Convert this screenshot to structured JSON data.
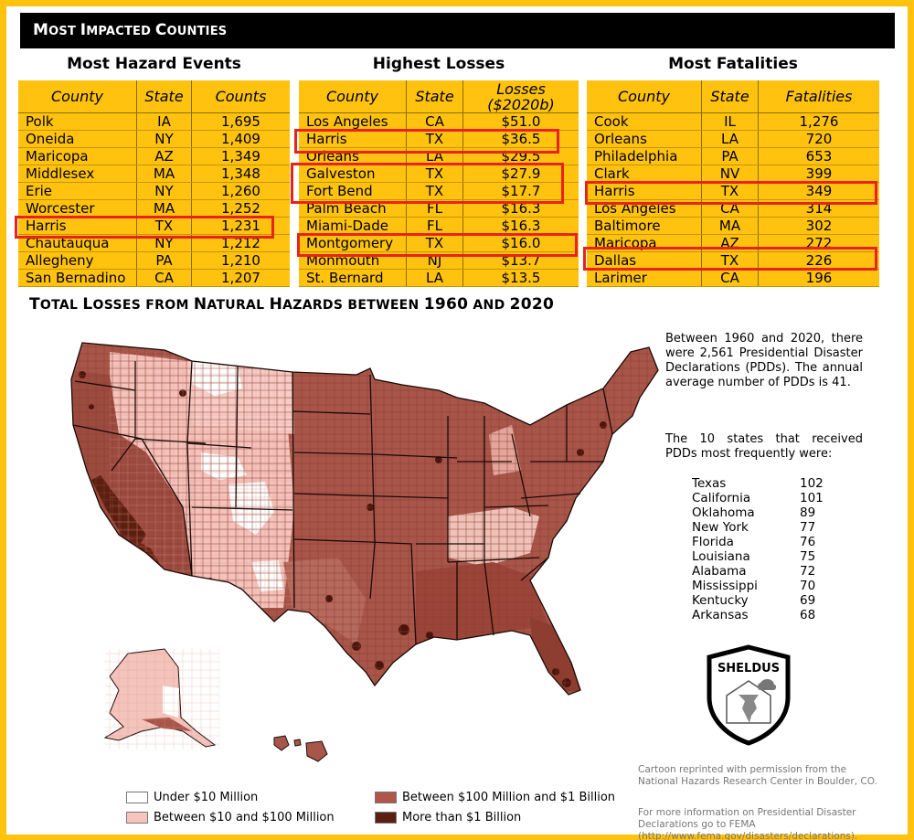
{
  "banner": "Most Impacted Counties",
  "hazard_table": {
    "title": "Most Hazard Events",
    "headers": [
      "County",
      "State",
      "Counts"
    ],
    "rows": [
      [
        "Polk",
        "IA",
        "1,695"
      ],
      [
        "Oneida",
        "NY",
        "1,409"
      ],
      [
        "Maricopa",
        "AZ",
        "1,349"
      ],
      [
        "Middlesex",
        "MA",
        "1,348"
      ],
      [
        "Erie",
        "NY",
        "1,260"
      ],
      [
        "Worcester",
        "MA",
        "1,252"
      ],
      [
        "Harris",
        "TX",
        "1,231"
      ],
      [
        "Chautauqua",
        "NY",
        "1,212"
      ],
      [
        "Allegheny",
        "PA",
        "1,210"
      ],
      [
        "San Bernadino",
        "CA",
        "1,207"
      ]
    ]
  },
  "losses_table": {
    "title": "Highest Losses",
    "headers": [
      "County",
      "State",
      "Losses ($2020b)"
    ],
    "rows": [
      [
        "Los Angeles",
        "CA",
        "$51.0"
      ],
      [
        "Harris",
        "TX",
        "$36.5"
      ],
      [
        "Orleans",
        "LA",
        "$29.5"
      ],
      [
        "Galveston",
        "TX",
        "$27.9"
      ],
      [
        "Fort Bend",
        "TX",
        "$17.7"
      ],
      [
        "Palm Beach",
        "FL",
        "$16.3"
      ],
      [
        "Miami-Dade",
        "FL",
        "$16.3"
      ],
      [
        "Montgomery",
        "TX",
        "$16.0"
      ],
      [
        "Monmouth",
        "NJ",
        "$13.7"
      ],
      [
        "St. Bernard",
        "LA",
        "$13.5"
      ]
    ]
  },
  "fatalities_table": {
    "title": "Most Fatalities",
    "headers": [
      "County",
      "State",
      "Fatalities"
    ],
    "rows": [
      [
        "Cook",
        "IL",
        "1,276"
      ],
      [
        "Orleans",
        "LA",
        "720"
      ],
      [
        "Philadelphia",
        "PA",
        "653"
      ],
      [
        "Clark",
        "NV",
        "399"
      ],
      [
        "Harris",
        "TX",
        "349"
      ],
      [
        "Los Angeles",
        "CA",
        "314"
      ],
      [
        "Baltimore",
        "MA",
        "302"
      ],
      [
        "Maricopa",
        "AZ",
        "272"
      ],
      [
        "Dallas",
        "TX",
        "226"
      ],
      [
        "Larimer",
        "CA",
        "196"
      ]
    ]
  },
  "map_title": "Total Losses from Natural Hazards between 1960 and 2020",
  "map_title_parts": {
    "a": "T",
    "b": "OTAL ",
    "c": "L",
    "d": "OSSES FROM ",
    "e": "N",
    "f": "ATURAL ",
    "g": "H",
    "h": "AZARDS BETWEEN ",
    "i": "1960",
    "j": " AND ",
    "k": "2020"
  },
  "banner_parts": {
    "a": "M",
    "b": "OST ",
    "c": "I",
    "d": "MPACTED ",
    "e": "C",
    "f": "OUNTIES"
  },
  "pdd_paragraph": "Between 1960 and 2020, there were 2,561 Presidential Disaster Declarations (PDDs). The annual average number of PDDs is 41.",
  "top_states_intro": "The 10 states that received PDDs most frequently were:",
  "top_states": [
    {
      "state": "Texas",
      "count": "102"
    },
    {
      "state": "California",
      "count": "101"
    },
    {
      "state": "Oklahoma",
      "count": "89"
    },
    {
      "state": "New York",
      "count": "77"
    },
    {
      "state": "Florida",
      "count": "76"
    },
    {
      "state": "Louisiana",
      "count": "75"
    },
    {
      "state": "Alabama",
      "count": "72"
    },
    {
      "state": "Mississippi",
      "count": "70"
    },
    {
      "state": "Kentucky",
      "count": "69"
    },
    {
      "state": "Arkansas",
      "count": "68"
    }
  ],
  "logo_text": "SHELDUS",
  "credit_cartoon": "Cartoon reprinted with permission from the National Hazards Research Center in Boulder, CO.",
  "credit_fema": "For more information on Presidential Disaster Declarations go to FEMA (http://www.fema.gov/disasters/declarations).",
  "legend": [
    {
      "label": "Under $10 Million",
      "color": "#ffffff"
    },
    {
      "label": "Between $10 and  $100 Million",
      "color": "#f7c4bd"
    },
    {
      "label": "Between $100 Million and $1 Billion",
      "color": "#b0574a"
    },
    {
      "label": "More than $1 Billion",
      "color": "#5a1f0e"
    }
  ],
  "colors": {
    "accent": "#ffc20e",
    "highlight": "#e8231b",
    "banner": "#000000"
  }
}
